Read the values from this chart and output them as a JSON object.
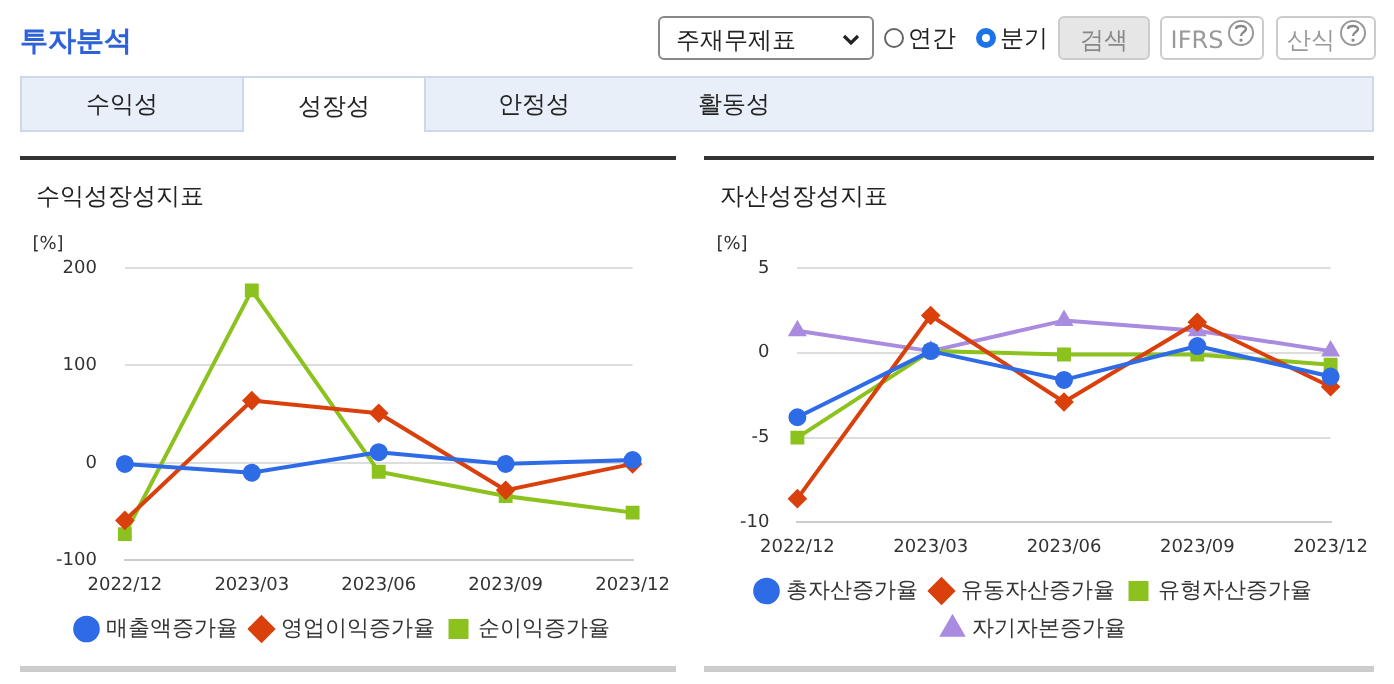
{
  "chart_data": [
    {
      "type": "other",
      "title": "투자분석",
      "annotations": [
        "주재무제표",
        "연간",
        "분기",
        "검색",
        "IFRS",
        "산식",
        "수익성",
        "성장성",
        "안정성",
        "활동성"
      ]
    },
    {
      "type": "line",
      "title": "수익성장성지표",
      "ylabel": "[%]",
      "categories": [
        "2022/12",
        "2023/03",
        "2023/06",
        "2023/09",
        "2023/12"
      ],
      "ylim": [
        -100,
        200
      ],
      "yticks": [
        -100,
        0,
        100,
        200
      ],
      "grid": "y",
      "legend": "bottom",
      "series": [
        {
          "name": "매출액증가율",
          "color": "#2e6be6",
          "marker": "circle",
          "values": [
            -1,
            -10,
            11,
            -1,
            3
          ]
        },
        {
          "name": "영업이익증가율",
          "color": "#d9400b",
          "marker": "diamond",
          "values": [
            -59,
            64,
            51,
            -28,
            -1
          ]
        },
        {
          "name": "순이익증가율",
          "color": "#8cc21e",
          "marker": "square",
          "values": [
            -73,
            177,
            -9,
            -34,
            -51
          ]
        }
      ]
    },
    {
      "type": "line",
      "title": "자산성장성지표",
      "ylabel": "[%]",
      "categories": [
        "2022/12",
        "2023/03",
        "2023/06",
        "2023/09",
        "2023/12"
      ],
      "ylim": [
        -10,
        5
      ],
      "yticks": [
        -10,
        -5,
        0,
        5
      ],
      "grid": "y",
      "legend": "bottom",
      "series": [
        {
          "name": "총자산증가율",
          "color": "#2e6be6",
          "marker": "circle",
          "values": [
            -3.8,
            0.1,
            -1.6,
            0.4,
            -1.4
          ]
        },
        {
          "name": "유동자산증가율",
          "color": "#d9400b",
          "marker": "diamond",
          "values": [
            -8.6,
            2.2,
            -2.9,
            1.8,
            -2.0
          ]
        },
        {
          "name": "유형자산증가율",
          "color": "#8cc21e",
          "marker": "square",
          "values": [
            -5.0,
            0.1,
            -0.1,
            -0.1,
            -0.7
          ]
        },
        {
          "name": "자기자본증가율",
          "color": "#a98be0",
          "marker": "triangle",
          "values": [
            1.3,
            0.1,
            1.9,
            1.3,
            0.1
          ]
        }
      ]
    }
  ]
}
